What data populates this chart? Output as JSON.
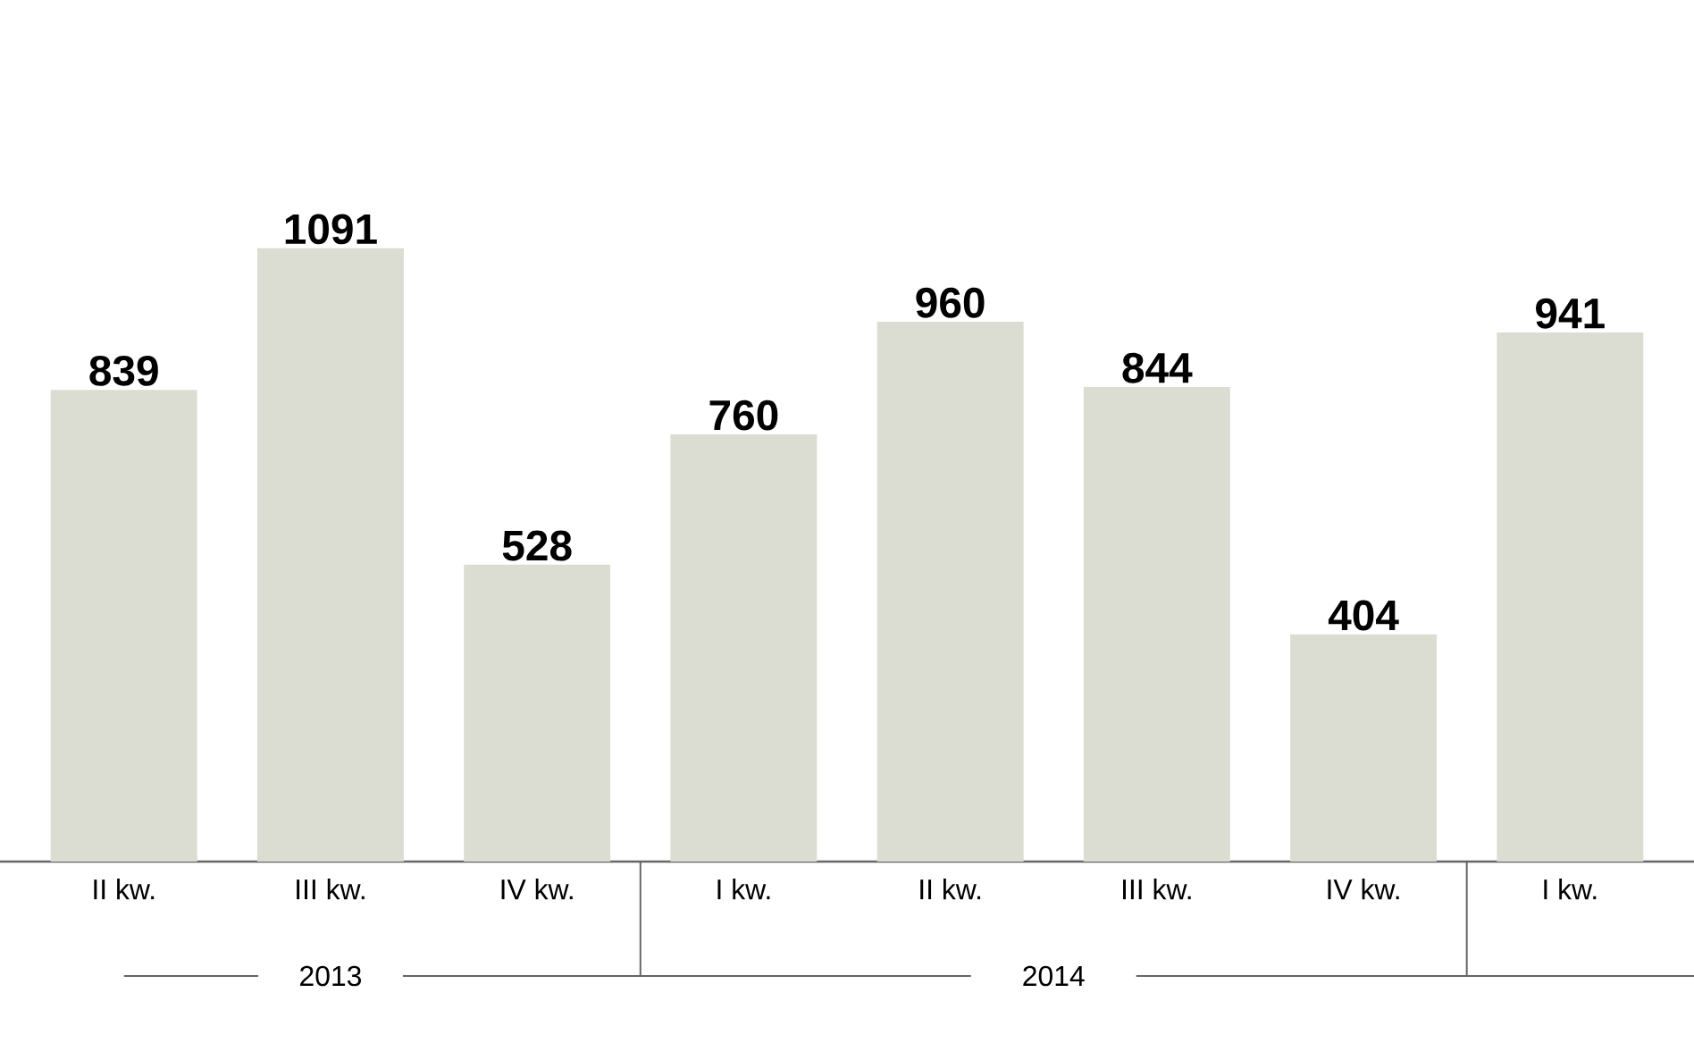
{
  "chart_data": {
    "type": "bar",
    "categories": [
      "II kw.",
      "III kw.",
      "IV kw.",
      "I kw.",
      "II kw.",
      "III kw.",
      "IV kw.",
      "I kw."
    ],
    "values": [
      839,
      1091,
      528,
      760,
      960,
      844,
      404,
      941
    ],
    "color": "#dcddd2",
    "data_labels": true,
    "annotations": [
      "2013",
      "2014"
    ]
  }
}
